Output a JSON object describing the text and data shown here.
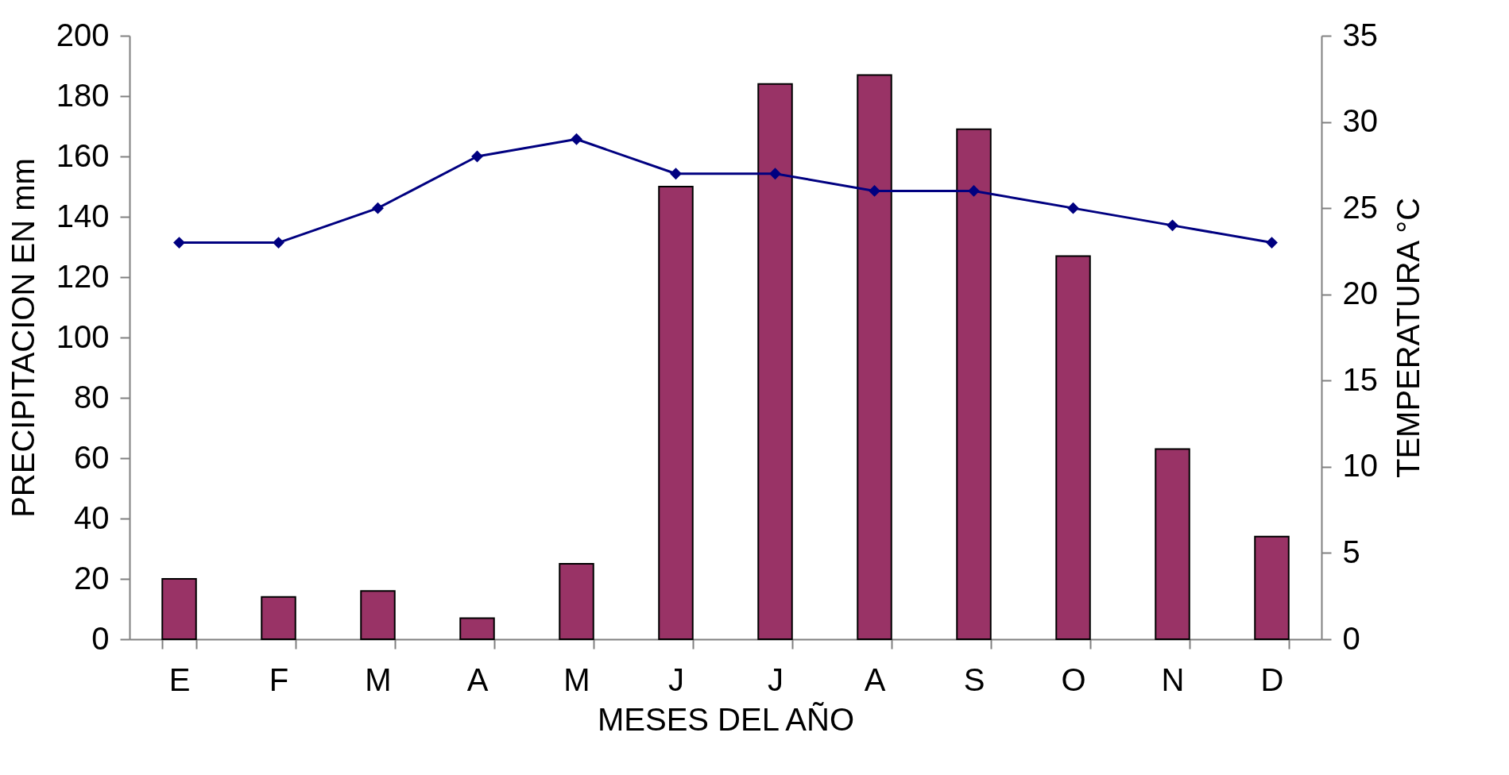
{
  "chart_data": {
    "type": "bar",
    "xlabel": "MESES DEL AÑO",
    "ylabel": "PRECIPITACION EN  mm",
    "y2label": "TEMPERATURA °C",
    "categories": [
      "E",
      "F",
      "M",
      "A",
      "M",
      "J",
      "J",
      "A",
      "S",
      "O",
      "N",
      "D"
    ],
    "series": [
      {
        "color": "#993366",
        "values": [
          20,
          14,
          16,
          7,
          25,
          150,
          184,
          187,
          169,
          127,
          63,
          34
        ]
      },
      {
        "type": "line",
        "axis": "y2",
        "color": "#000080",
        "values": [
          23,
          23,
          25,
          28,
          29,
          27,
          27,
          26,
          26,
          25,
          24,
          23
        ]
      }
    ],
    "marker": "diamond",
    "ylim": [
      0,
      200
    ],
    "yticks": [
      0,
      20,
      40,
      60,
      80,
      100,
      120,
      140,
      160,
      180,
      200
    ],
    "y2lim": [
      0,
      35
    ],
    "y2ticks": [
      0,
      5,
      10,
      15,
      20,
      25,
      30,
      35
    ]
  }
}
